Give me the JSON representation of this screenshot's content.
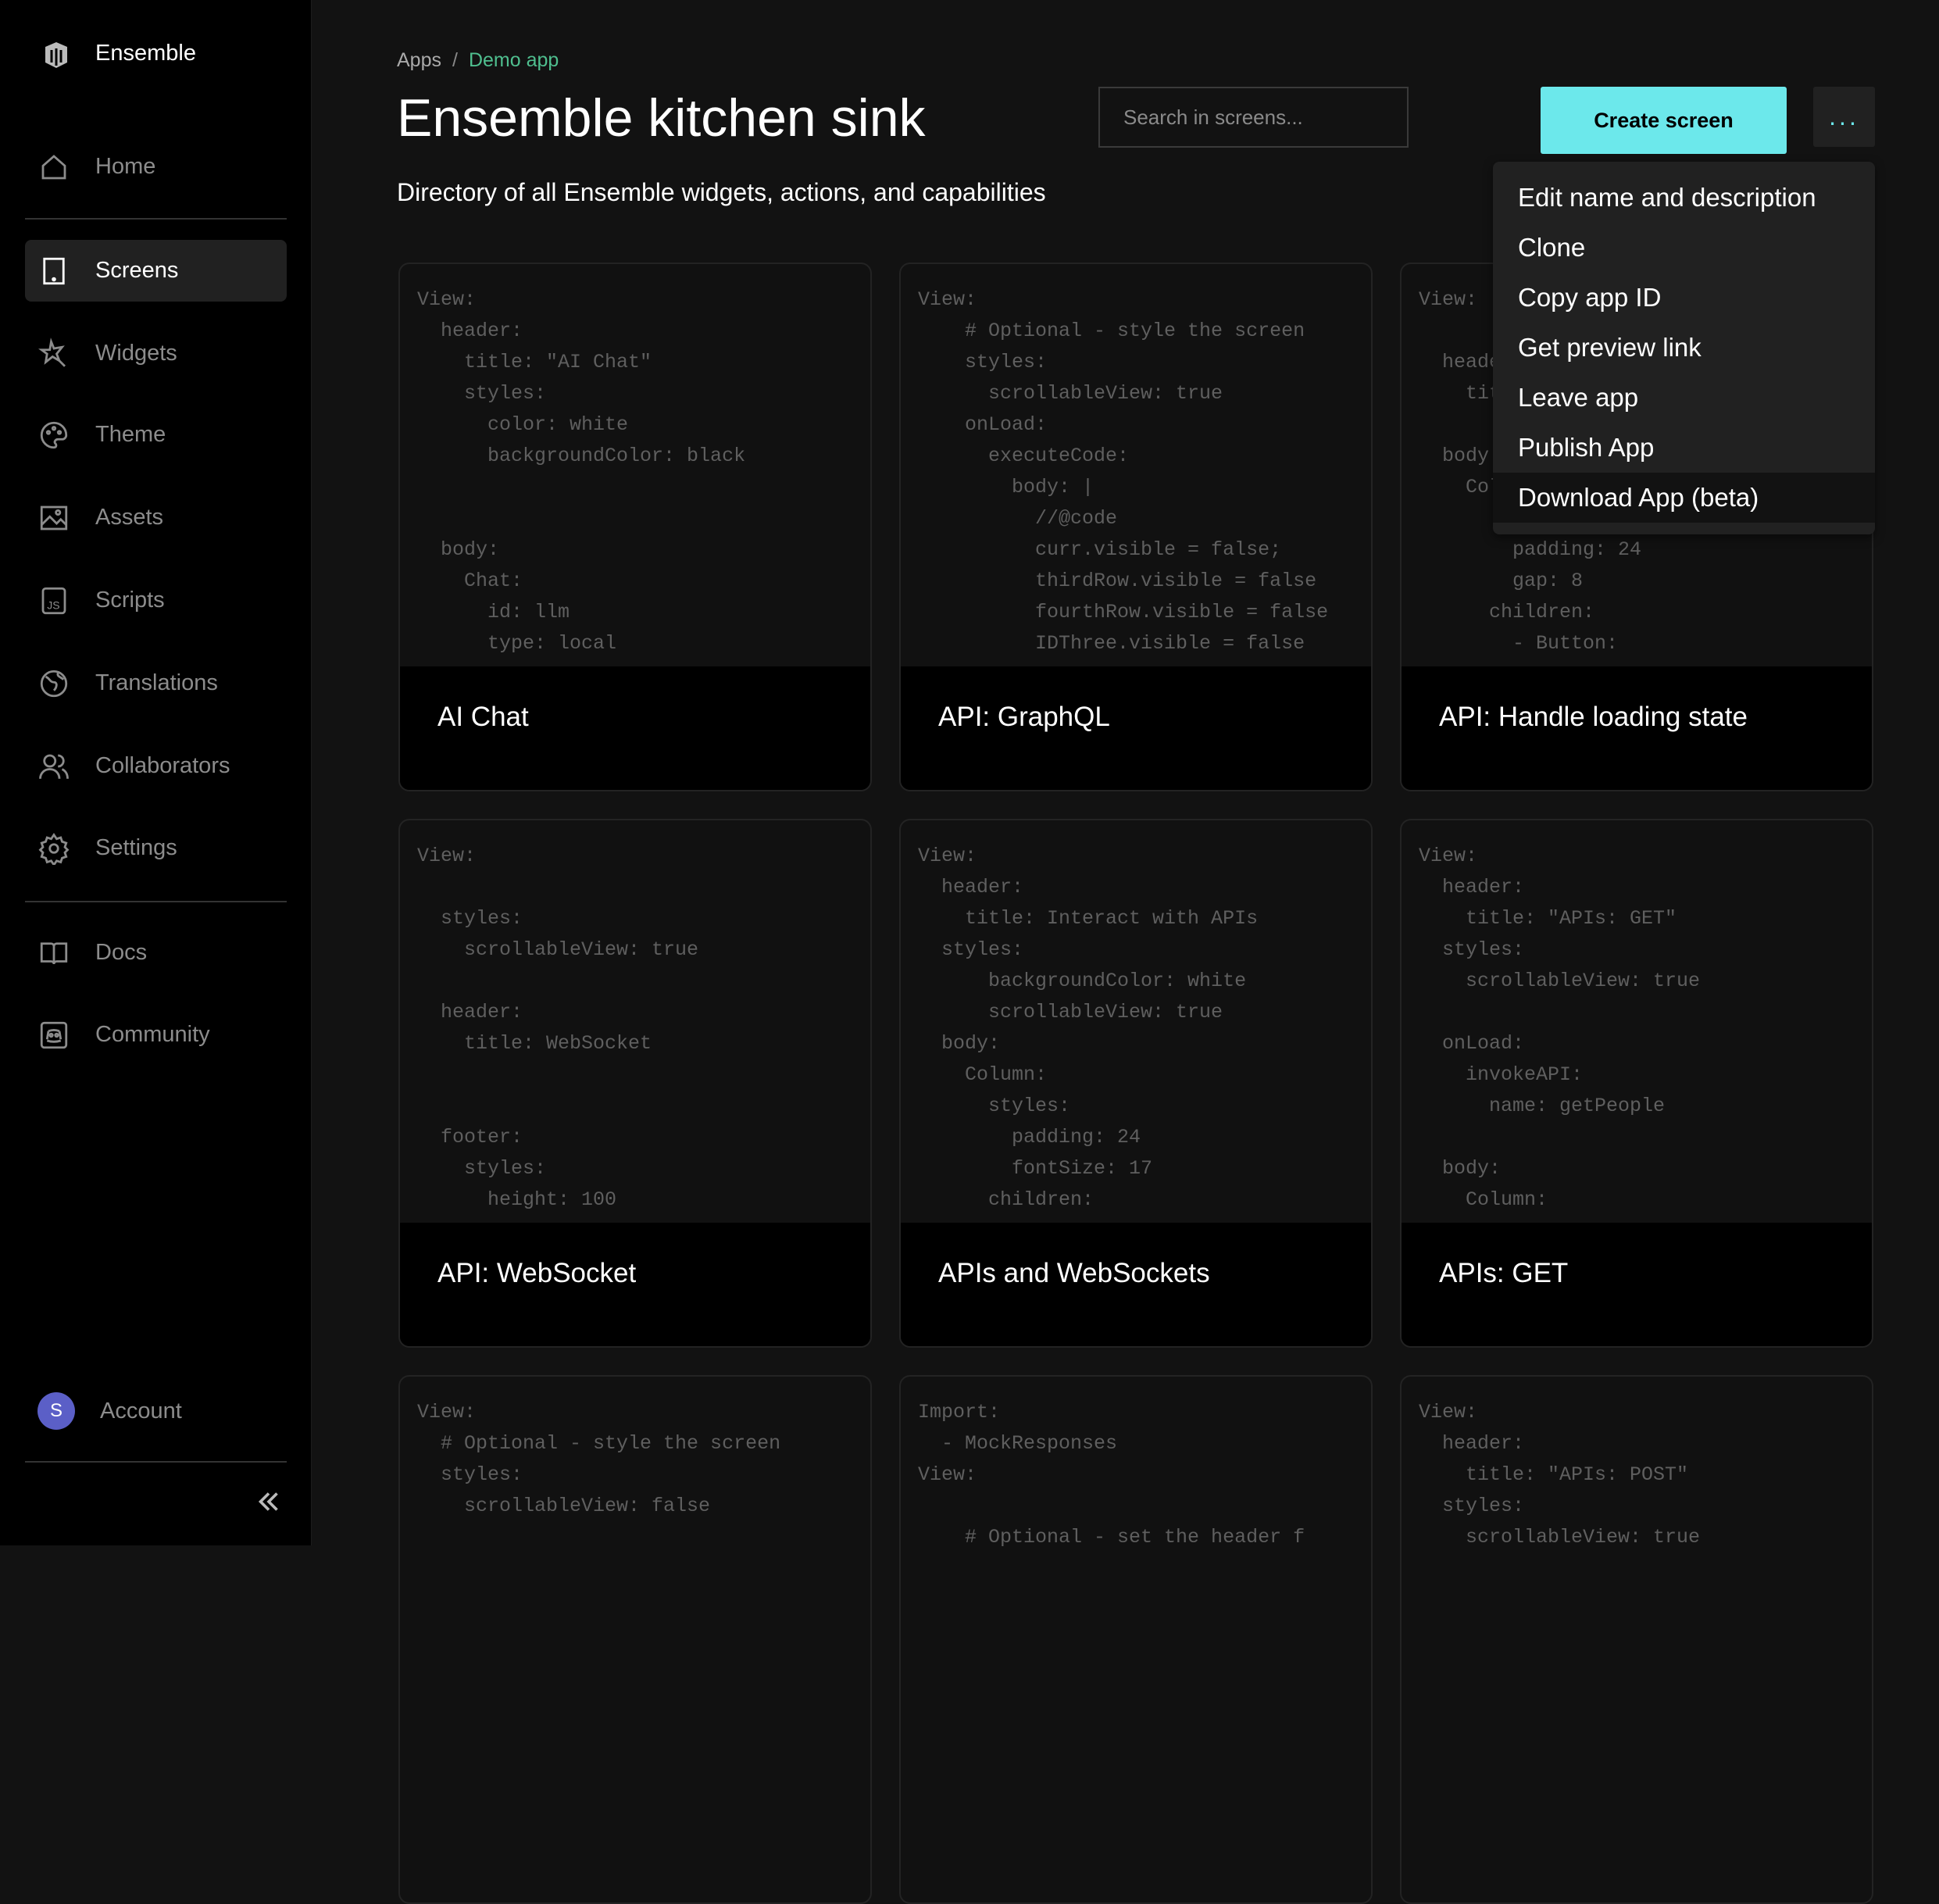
{
  "sidebar": {
    "brand": "Ensemble",
    "items": [
      {
        "label": "Home",
        "icon": "home-icon"
      },
      {
        "label": "Screens",
        "icon": "tablet-icon",
        "active": true
      },
      {
        "label": "Widgets",
        "icon": "magic-wand-icon"
      },
      {
        "label": "Theme",
        "icon": "palette-icon"
      },
      {
        "label": "Assets",
        "icon": "image-icon"
      },
      {
        "label": "Scripts",
        "icon": "js-file-icon"
      },
      {
        "label": "Translations",
        "icon": "globe-icon"
      },
      {
        "label": "Collaborators",
        "icon": "users-icon"
      },
      {
        "label": "Settings",
        "icon": "gear-icon"
      },
      {
        "label": "Docs",
        "icon": "book-icon"
      },
      {
        "label": "Community",
        "icon": "discord-icon"
      }
    ],
    "account": {
      "initial": "S",
      "label": "Account"
    }
  },
  "header": {
    "breadcrumb": [
      "Apps",
      "Demo app"
    ],
    "breadcrumb_separator": "/",
    "title": "Ensemble kitchen sink",
    "subtitle": "Directory of all Ensemble widgets, actions, and capabilities",
    "search_placeholder": "Search in screens...",
    "create_label": "Create screen",
    "more_label": "...",
    "accent": "#6ce8eb"
  },
  "menu": {
    "items": [
      "Edit name and description",
      "Clone",
      "Copy app ID",
      "Get preview link",
      "Leave app",
      "Publish App",
      "Download App (beta)"
    ],
    "highlighted": 6
  },
  "cards": [
    {
      "title": "AI Chat",
      "code": [
        "View:",
        "  header:",
        "    title: \"AI Chat\"",
        "    styles:",
        "      color: white",
        "      backgroundColor: black",
        "",
        "",
        "  body:",
        "    Chat:",
        "      id: llm",
        "      type: local"
      ]
    },
    {
      "title": "API: GraphQL",
      "code": [
        "View:",
        "    # Optional - style the screen",
        "    styles:",
        "      scrollableView: true",
        "    onLoad:",
        "      executeCode:",
        "        body: |",
        "          //@code",
        "          curr.visible = false;",
        "          thirdRow.visible = false",
        "          fourthRow.visible = false",
        "          IDThree.visible = false"
      ]
    },
    {
      "title": "API: Handle loading state",
      "code": [
        "View:",
        "",
        "  header:",
        "    title:",
        "",
        "  body:",
        "    Column:",
        "",
        "        padding: 24",
        "        gap: 8",
        "      children:",
        "        - Button:"
      ]
    },
    {
      "title": "API: WebSocket",
      "code": [
        "View:",
        "",
        "  styles:",
        "    scrollableView: true",
        "",
        "  header:",
        "    title: WebSocket",
        "",
        "",
        "  footer:",
        "    styles:",
        "      height: 100"
      ]
    },
    {
      "title": "APIs and WebSockets",
      "code": [
        "View:",
        "  header:",
        "    title: Interact with APIs",
        "  styles:",
        "      backgroundColor: white",
        "      scrollableView: true",
        "  body:",
        "    Column:",
        "      styles:",
        "        padding: 24",
        "        fontSize: 17",
        "      children:"
      ]
    },
    {
      "title": "APIs: GET",
      "code": [
        "View:",
        "  header:",
        "    title: \"APIs: GET\"",
        "  styles:",
        "    scrollableView: true",
        "",
        "  onLoad:",
        "    invokeAPI:",
        "      name: getPeople",
        "",
        "  body:",
        "    Column:"
      ]
    },
    {
      "title": "",
      "code": [
        "View:",
        "  # Optional - style the screen",
        "  styles:",
        "    scrollableView: false"
      ]
    },
    {
      "title": "",
      "code": [
        "Import:",
        "  - MockResponses",
        "View:",
        "",
        "    # Optional - set the header f"
      ]
    },
    {
      "title": "",
      "code": [
        "View:",
        "  header:",
        "    title: \"APIs: POST\"",
        "  styles:",
        "    scrollableView: true"
      ]
    }
  ]
}
